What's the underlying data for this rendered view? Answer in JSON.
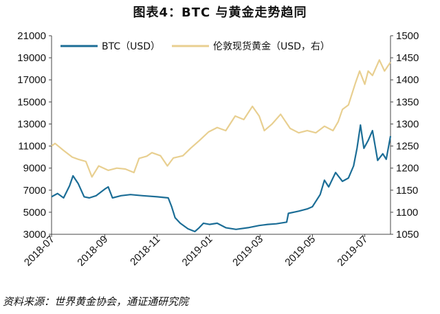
{
  "title": "图表4：BTC 与黄金走势趋同",
  "source": "资料来源：世界黄金协会，通证通研究院",
  "colors": {
    "btc": "#1b6d96",
    "gold": "#e8cf90",
    "axis": "#444444"
  },
  "chart_data": {
    "type": "line",
    "grid": false,
    "legend_position": "top",
    "x_type": "date",
    "x_range": [
      "2018-07-01",
      "2019-07-31"
    ],
    "x_ticks": [
      "2018-07",
      "2018-09",
      "2018-11",
      "2019-01",
      "2019-03",
      "2019-05",
      "2019-07"
    ],
    "y_left": {
      "range": [
        3000,
        21000
      ],
      "ticks": [
        3000,
        5000,
        7000,
        9000,
        11000,
        13000,
        15000,
        17000,
        19000,
        21000
      ]
    },
    "y_right": {
      "range": [
        1050,
        1500
      ],
      "ticks": [
        1050,
        1100,
        1150,
        1200,
        1250,
        1300,
        1350,
        1400,
        1450,
        1500
      ]
    },
    "series": [
      {
        "name": "BTC（USD）",
        "axis": "left",
        "points": [
          [
            "2018-07-01",
            6400
          ],
          [
            "2018-07-08",
            6700
          ],
          [
            "2018-07-15",
            6300
          ],
          [
            "2018-07-22",
            7400
          ],
          [
            "2018-07-26",
            8300
          ],
          [
            "2018-08-01",
            7600
          ],
          [
            "2018-08-08",
            6400
          ],
          [
            "2018-08-14",
            6300
          ],
          [
            "2018-08-22",
            6500
          ],
          [
            "2018-09-01",
            7100
          ],
          [
            "2018-09-05",
            7300
          ],
          [
            "2018-09-10",
            6300
          ],
          [
            "2018-09-20",
            6500
          ],
          [
            "2018-10-01",
            6600
          ],
          [
            "2018-10-15",
            6500
          ],
          [
            "2018-11-01",
            6400
          ],
          [
            "2018-11-14",
            6300
          ],
          [
            "2018-11-18",
            5500
          ],
          [
            "2018-11-22",
            4500
          ],
          [
            "2018-11-28",
            4000
          ],
          [
            "2018-12-07",
            3500
          ],
          [
            "2018-12-15",
            3250
          ],
          [
            "2018-12-20",
            3600
          ],
          [
            "2018-12-25",
            4000
          ],
          [
            "2019-01-01",
            3900
          ],
          [
            "2019-01-10",
            4000
          ],
          [
            "2019-01-20",
            3600
          ],
          [
            "2019-02-01",
            3450
          ],
          [
            "2019-02-15",
            3600
          ],
          [
            "2019-02-28",
            3800
          ],
          [
            "2019-03-10",
            3900
          ],
          [
            "2019-03-20",
            3950
          ],
          [
            "2019-04-01",
            4100
          ],
          [
            "2019-04-03",
            4900
          ],
          [
            "2019-04-15",
            5100
          ],
          [
            "2019-04-25",
            5300
          ],
          [
            "2019-05-01",
            5500
          ],
          [
            "2019-05-10",
            6600
          ],
          [
            "2019-05-15",
            7900
          ],
          [
            "2019-05-20",
            7300
          ],
          [
            "2019-05-28",
            8600
          ],
          [
            "2019-06-05",
            7800
          ],
          [
            "2019-06-12",
            8100
          ],
          [
            "2019-06-18",
            9200
          ],
          [
            "2019-06-22",
            10800
          ],
          [
            "2019-06-26",
            12900
          ],
          [
            "2019-06-30",
            10800
          ],
          [
            "2019-07-05",
            11500
          ],
          [
            "2019-07-10",
            12400
          ],
          [
            "2019-07-16",
            9700
          ],
          [
            "2019-07-22",
            10300
          ],
          [
            "2019-07-26",
            9800
          ],
          [
            "2019-07-31",
            11900
          ]
        ]
      },
      {
        "name": "伦敦现货黄金（USD，右）",
        "axis": "right",
        "points": [
          [
            "2018-07-01",
            1250
          ],
          [
            "2018-07-05",
            1256
          ],
          [
            "2018-07-15",
            1240
          ],
          [
            "2018-07-25",
            1225
          ],
          [
            "2018-08-01",
            1220
          ],
          [
            "2018-08-10",
            1215
          ],
          [
            "2018-08-17",
            1180
          ],
          [
            "2018-08-25",
            1205
          ],
          [
            "2018-09-05",
            1195
          ],
          [
            "2018-09-15",
            1200
          ],
          [
            "2018-09-25",
            1198
          ],
          [
            "2018-10-05",
            1190
          ],
          [
            "2018-10-11",
            1222
          ],
          [
            "2018-10-20",
            1227
          ],
          [
            "2018-10-26",
            1235
          ],
          [
            "2018-11-05",
            1228
          ],
          [
            "2018-11-13",
            1205
          ],
          [
            "2018-11-20",
            1223
          ],
          [
            "2018-12-01",
            1228
          ],
          [
            "2018-12-10",
            1245
          ],
          [
            "2018-12-20",
            1262
          ],
          [
            "2018-12-31",
            1282
          ],
          [
            "2019-01-10",
            1292
          ],
          [
            "2019-01-20",
            1285
          ],
          [
            "2019-01-31",
            1318
          ],
          [
            "2019-02-10",
            1310
          ],
          [
            "2019-02-20",
            1340
          ],
          [
            "2019-02-28",
            1318
          ],
          [
            "2019-03-06",
            1285
          ],
          [
            "2019-03-15",
            1300
          ],
          [
            "2019-03-25",
            1322
          ],
          [
            "2019-04-05",
            1290
          ],
          [
            "2019-04-15",
            1280
          ],
          [
            "2019-04-25",
            1285
          ],
          [
            "2019-05-05",
            1280
          ],
          [
            "2019-05-15",
            1295
          ],
          [
            "2019-05-25",
            1285
          ],
          [
            "2019-05-31",
            1305
          ],
          [
            "2019-06-05",
            1333
          ],
          [
            "2019-06-12",
            1343
          ],
          [
            "2019-06-20",
            1392
          ],
          [
            "2019-06-25",
            1420
          ],
          [
            "2019-07-01",
            1390
          ],
          [
            "2019-07-05",
            1420
          ],
          [
            "2019-07-10",
            1410
          ],
          [
            "2019-07-18",
            1445
          ],
          [
            "2019-07-24",
            1420
          ],
          [
            "2019-07-31",
            1440
          ]
        ]
      }
    ]
  }
}
